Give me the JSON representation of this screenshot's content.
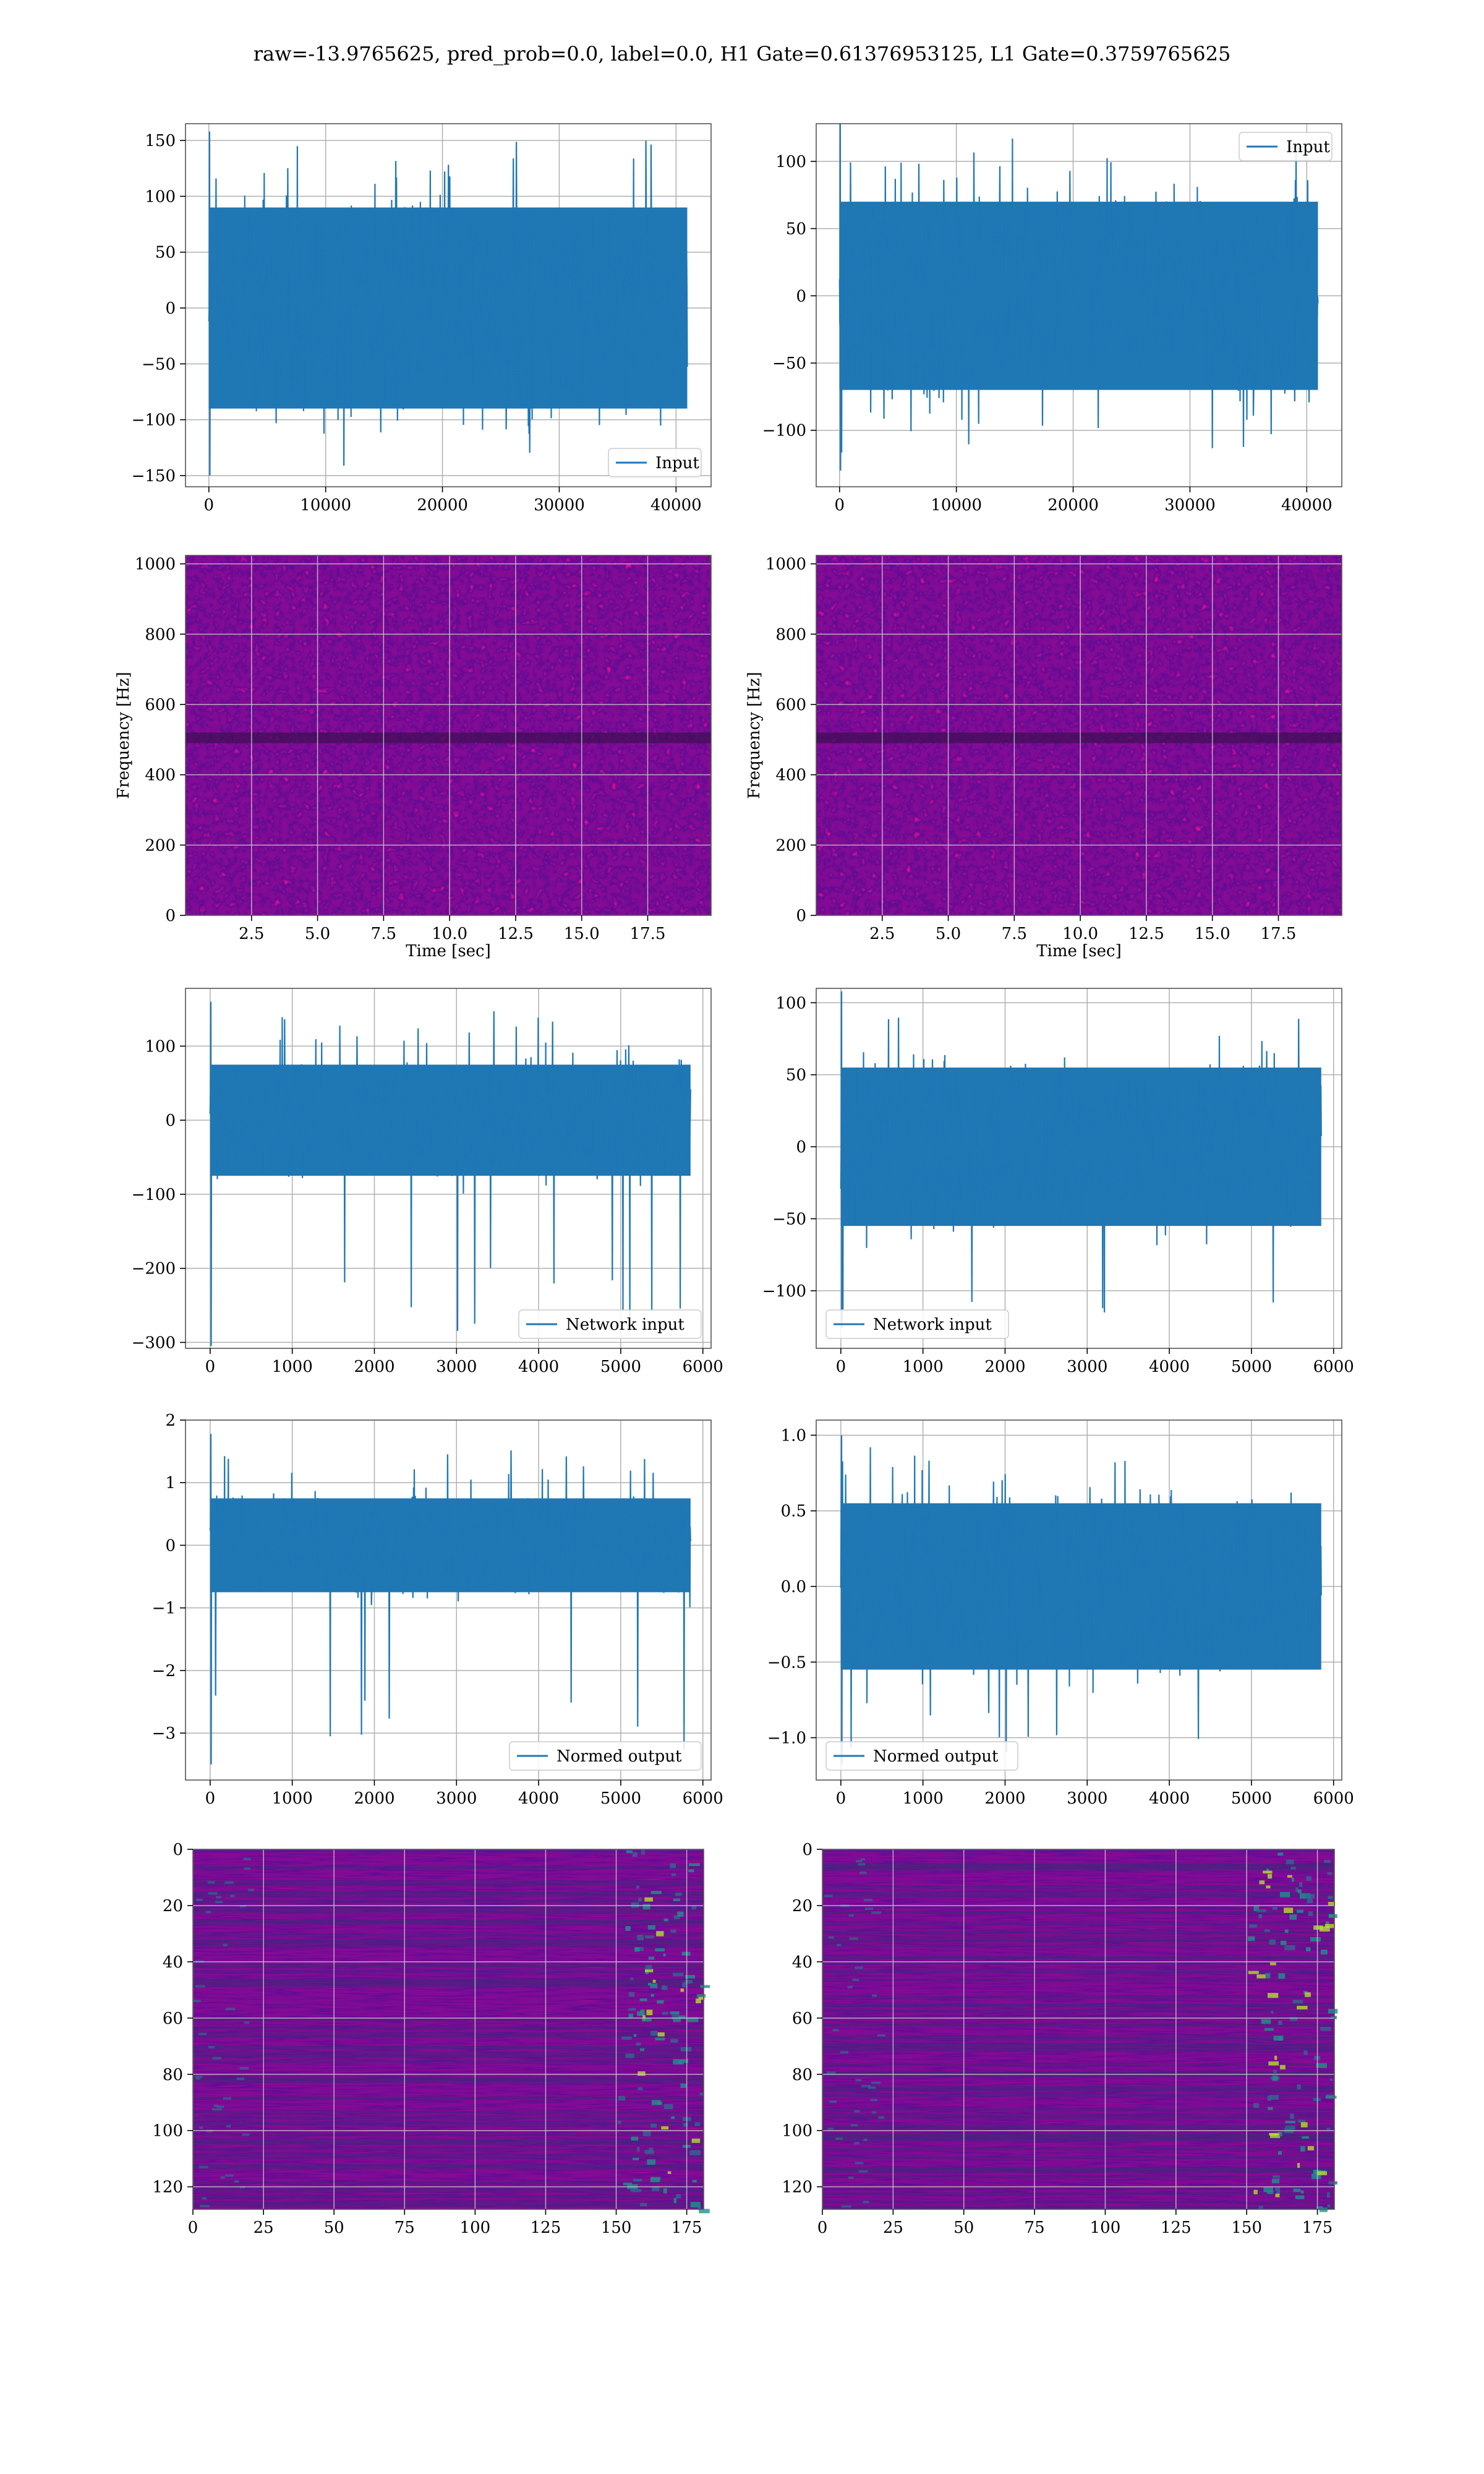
{
  "suptitle": "raw=-13.9765625, pred_prob=0.0, label=0.0, H1 Gate=0.61376953125, L1 Gate=0.3759765625",
  "colors": {
    "line": "#1f77b4",
    "grid": "#b0b0b0",
    "viridis_low": "#440154",
    "viridis_high": "#fde725"
  },
  "chart_data": [
    {
      "id": "h1-input",
      "type": "line",
      "legend": {
        "label": "Input",
        "position": "lower right"
      },
      "xlim": [
        -2000,
        43000
      ],
      "ylim": [
        -160,
        165
      ],
      "xticks": [
        0,
        10000,
        20000,
        30000,
        40000
      ],
      "yticks": [
        -150,
        -100,
        -50,
        0,
        50,
        100,
        150
      ],
      "series": [
        {
          "x_range": [
            0,
            40960
          ],
          "envelope_top": 90,
          "envelope_bottom": -90,
          "max": 158,
          "min": -150
        }
      ]
    },
    {
      "id": "l1-input",
      "type": "line",
      "legend": {
        "label": "Input",
        "position": "upper right"
      },
      "xlim": [
        -2000,
        43000
      ],
      "ylim": [
        -142,
        128
      ],
      "xticks": [
        0,
        10000,
        20000,
        30000,
        40000
      ],
      "yticks": [
        -100,
        -50,
        0,
        50,
        100
      ],
      "series": [
        {
          "x_range": [
            0,
            40960
          ],
          "envelope_top": 70,
          "envelope_bottom": -70,
          "max": 128,
          "min": -130
        }
      ]
    },
    {
      "id": "h1-spectrogram",
      "type": "heatmap",
      "xlabel": "Time [sec]",
      "ylabel": "Frequency [Hz]",
      "xlim": [
        0,
        19.9
      ],
      "ylim": [
        0,
        1024
      ],
      "xticks": [
        2.5,
        5.0,
        7.5,
        10.0,
        12.5,
        15.0,
        17.5
      ],
      "yticks": [
        0,
        200,
        400,
        600,
        800,
        1000
      ]
    },
    {
      "id": "l1-spectrogram",
      "type": "heatmap",
      "xlabel": "Time [sec]",
      "ylabel": "Frequency [Hz]",
      "xlim": [
        0,
        19.9
      ],
      "ylim": [
        0,
        1024
      ],
      "xticks": [
        2.5,
        5.0,
        7.5,
        10.0,
        12.5,
        15.0,
        17.5
      ],
      "yticks": [
        0,
        200,
        400,
        600,
        800,
        1000
      ]
    },
    {
      "id": "h1-network-input",
      "type": "line",
      "legend": {
        "label": "Network input",
        "position": "lower right"
      },
      "xlim": [
        -300,
        6100
      ],
      "ylim": [
        -308,
        178
      ],
      "xticks": [
        0,
        1000,
        2000,
        3000,
        4000,
        5000,
        6000
      ],
      "yticks": [
        -300,
        -200,
        -100,
        0,
        100
      ],
      "series": [
        {
          "x_range": [
            0,
            5850
          ],
          "envelope_top": 75,
          "envelope_bottom": -75,
          "max": 160,
          "min": -305
        }
      ]
    },
    {
      "id": "l1-network-input",
      "type": "line",
      "legend": {
        "label": "Network input",
        "position": "lower left"
      },
      "xlim": [
        -300,
        6100
      ],
      "ylim": [
        -140,
        110
      ],
      "xticks": [
        0,
        1000,
        2000,
        3000,
        4000,
        5000,
        6000
      ],
      "yticks": [
        -100,
        -50,
        0,
        50,
        100
      ],
      "series": [
        {
          "x_range": [
            0,
            5850
          ],
          "envelope_top": 55,
          "envelope_bottom": -55,
          "max": 108,
          "min": -126
        }
      ]
    },
    {
      "id": "h1-normed-output",
      "type": "line",
      "legend": {
        "label": "Normed output",
        "position": "lower right"
      },
      "xlim": [
        -300,
        6100
      ],
      "ylim": [
        -3.75,
        2.0
      ],
      "xticks": [
        0,
        1000,
        2000,
        3000,
        4000,
        5000,
        6000
      ],
      "yticks": [
        -3,
        -2,
        -1,
        0,
        1,
        2
      ],
      "series": [
        {
          "x_range": [
            0,
            5850
          ],
          "envelope_top": 0.75,
          "envelope_bottom": -0.75,
          "max": 1.78,
          "min": -3.5
        }
      ]
    },
    {
      "id": "l1-normed-output",
      "type": "line",
      "legend": {
        "label": "Normed output",
        "position": "lower left"
      },
      "xlim": [
        -300,
        6100
      ],
      "ylim": [
        -1.28,
        1.1
      ],
      "xticks": [
        0,
        1000,
        2000,
        3000,
        4000,
        5000,
        6000
      ],
      "yticks": [
        -1.0,
        -0.5,
        0.0,
        0.5,
        1.0
      ],
      "series": [
        {
          "x_range": [
            0,
            5850
          ],
          "envelope_top": 0.55,
          "envelope_bottom": -0.55,
          "max": 1.0,
          "min": -1.18
        }
      ]
    },
    {
      "id": "h1-feature-map",
      "type": "heatmap",
      "xlim": [
        0,
        181
      ],
      "ylim": [
        128,
        0
      ],
      "y_inverted": true,
      "xticks": [
        0,
        25,
        50,
        75,
        100,
        125,
        150,
        175
      ],
      "yticks": [
        0,
        20,
        40,
        60,
        80,
        100,
        120
      ]
    },
    {
      "id": "l1-feature-map",
      "type": "heatmap",
      "xlim": [
        0,
        181
      ],
      "ylim": [
        128,
        0
      ],
      "y_inverted": true,
      "xticks": [
        0,
        25,
        50,
        75,
        100,
        125,
        150,
        175
      ],
      "yticks": [
        0,
        20,
        40,
        60,
        80,
        100,
        120
      ]
    }
  ]
}
